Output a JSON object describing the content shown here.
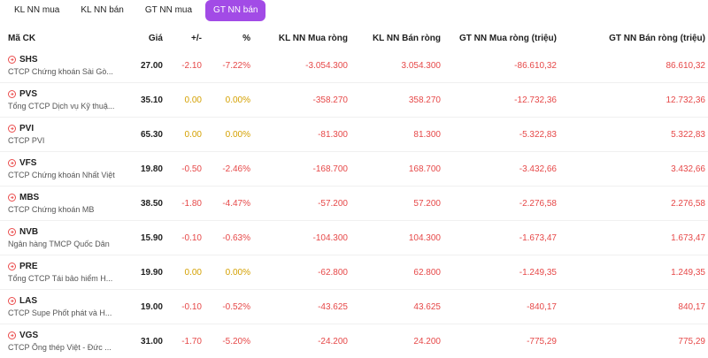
{
  "tabs": [
    {
      "label": "KL NN mua",
      "active": false
    },
    {
      "label": "KL NN bán",
      "active": false
    },
    {
      "label": "GT NN mua",
      "active": false
    },
    {
      "label": "GT NN bán",
      "active": true
    }
  ],
  "columns": [
    "Mã CK",
    "Giá",
    "+/-",
    "%",
    "KL NN Mua ròng",
    "KL NN Bán ròng",
    "GT NN Mua ròng (triệu)",
    "GT NN Bán ròng (triệu)"
  ],
  "rows": [
    {
      "symbol": "SHS",
      "name": "CTCP Chứng khoán Sài Gò...",
      "price": "27.00",
      "change": "-2.10",
      "pct": "-7.22%",
      "kl_mua": "-3.054.300",
      "kl_ban": "3.054.300",
      "gt_mua": "-86.610,32",
      "gt_ban": "86.610,32",
      "dir": "down"
    },
    {
      "symbol": "PVS",
      "name": "Tổng CTCP Dịch vụ Kỹ thuậ...",
      "price": "35.10",
      "change": "0.00",
      "pct": "0.00%",
      "kl_mua": "-358.270",
      "kl_ban": "358.270",
      "gt_mua": "-12.732,36",
      "gt_ban": "12.732,36",
      "dir": "flat"
    },
    {
      "symbol": "PVI",
      "name": "CTCP PVI",
      "price": "65.30",
      "change": "0.00",
      "pct": "0.00%",
      "kl_mua": "-81.300",
      "kl_ban": "81.300",
      "gt_mua": "-5.322,83",
      "gt_ban": "5.322,83",
      "dir": "flat"
    },
    {
      "symbol": "VFS",
      "name": "CTCP Chứng khoán Nhất Việt",
      "price": "19.80",
      "change": "-0.50",
      "pct": "-2.46%",
      "kl_mua": "-168.700",
      "kl_ban": "168.700",
      "gt_mua": "-3.432,66",
      "gt_ban": "3.432,66",
      "dir": "down"
    },
    {
      "symbol": "MBS",
      "name": "CTCP Chứng khoán MB",
      "price": "38.50",
      "change": "-1.80",
      "pct": "-4.47%",
      "kl_mua": "-57.200",
      "kl_ban": "57.200",
      "gt_mua": "-2.276,58",
      "gt_ban": "2.276,58",
      "dir": "down"
    },
    {
      "symbol": "NVB",
      "name": "Ngân hàng TMCP Quốc Dân",
      "price": "15.90",
      "change": "-0.10",
      "pct": "-0.63%",
      "kl_mua": "-104.300",
      "kl_ban": "104.300",
      "gt_mua": "-1.673,47",
      "gt_ban": "1.673,47",
      "dir": "down"
    },
    {
      "symbol": "PRE",
      "name": "Tổng CTCP Tái bảo hiểm H...",
      "price": "19.90",
      "change": "0.00",
      "pct": "0.00%",
      "kl_mua": "-62.800",
      "kl_ban": "62.800",
      "gt_mua": "-1.249,35",
      "gt_ban": "1.249,35",
      "dir": "flat"
    },
    {
      "symbol": "LAS",
      "name": "CTCP Supe Phốt phát và H...",
      "price": "19.00",
      "change": "-0.10",
      "pct": "-0.52%",
      "kl_mua": "-43.625",
      "kl_ban": "43.625",
      "gt_mua": "-840,17",
      "gt_ban": "840,17",
      "dir": "down"
    },
    {
      "symbol": "VGS",
      "name": "CTCP Ống thép Việt - Đức ...",
      "price": "31.00",
      "change": "-1.70",
      "pct": "-5.20%",
      "kl_mua": "-24.200",
      "kl_ban": "24.200",
      "gt_mua": "-775,29",
      "gt_ban": "775,29",
      "dir": "down"
    }
  ],
  "colors": {
    "accent": "#a24be6",
    "negative": "#e64848",
    "neutral": "#d4a000"
  },
  "icons": {
    "row_icon": "circle-arrow-icon"
  }
}
